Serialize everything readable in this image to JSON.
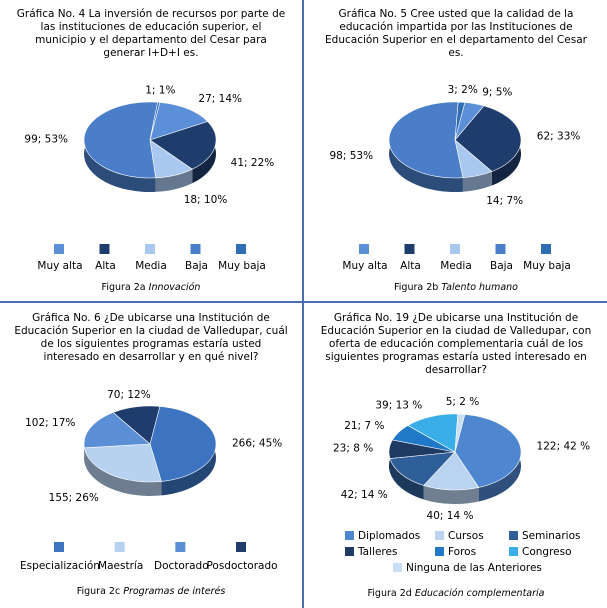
{
  "chart_data": [
    {
      "type": "pie",
      "title": "Gráfica No. 4 La inversión de recursos por parte de las instituciones de educación superior, el municipio y el departamento del Cesar para generar I+D+I es.",
      "categories": [
        "Muy alta",
        "Alta",
        "Media",
        "Baja",
        "Muy baja"
      ],
      "values": [
        27,
        41,
        18,
        99,
        1
      ],
      "value_labels": [
        "27; 14%",
        "41; 22%",
        "18; 10%",
        "99; 53%",
        "1; 1%"
      ],
      "colors": [
        "#5b8fd8",
        "#1f3d6c",
        "#a8c8ef",
        "#4a7ec9",
        "#2f6db5"
      ],
      "legend": "bottom",
      "caption": "Figura 2a",
      "caption_emphasis": "Innovación"
    },
    {
      "type": "pie",
      "title": "Gráfica No. 5 Cree usted que la calidad de la educación impartida por las Instituciones de Educación Superior en el departamento del Cesar es.",
      "categories": [
        "Muy alta",
        "Alta",
        "Media",
        "Baja",
        "Muy baja"
      ],
      "values": [
        9,
        62,
        14,
        98,
        3
      ],
      "value_labels": [
        "9; 5%",
        "62; 33%",
        "14; 7%",
        "98; 53%",
        "3; 2%"
      ],
      "colors": [
        "#5b8fd8",
        "#1f3d6c",
        "#a8c8ef",
        "#4a7ec9",
        "#2f6db5"
      ],
      "legend": "bottom",
      "caption": "Figura 2b",
      "caption_emphasis": "Talento humano"
    },
    {
      "type": "pie",
      "title": "Gráfica No. 6 ¿De ubicarse una Institución de Educación Superior en la ciudad de Valledupar, cuál de los siguientes programas estaría usted interesado en desarrollar y en  qué nivel?",
      "categories": [
        "Especialización",
        "Maestría",
        "Doctorado",
        "Posdoctorado"
      ],
      "values": [
        266,
        155,
        102,
        70
      ],
      "value_labels": [
        "266; 45%",
        "155; 26%",
        "102; 17%",
        "70; 12%"
      ],
      "colors": [
        "#3c74c2",
        "#b7d1f0",
        "#5a8fd6",
        "#1f3d6c"
      ],
      "legend": "bottom",
      "caption": "Figura 2c",
      "caption_emphasis": "Programas de interés"
    },
    {
      "type": "pie",
      "title": "Gráfica No. 19 ¿De ubicarse una Institución de Educación Superior en la ciudad de Valledupar, con oferta de educación complementaria cuál de los siguientes programas estaría usted interesado en desarrollar?",
      "categories": [
        "Diplomados",
        "Cursos",
        "Seminarios",
        "Talleres",
        "Foros",
        "Congreso",
        "Ninguna de las Anteriores"
      ],
      "values": [
        122,
        40,
        42,
        23,
        21,
        39,
        5
      ],
      "value_labels": [
        "122; 42 %",
        "40; 14 %",
        "42; 14 %",
        "23; 8 %",
        "21; 7 %",
        "39; 13 %",
        "5; 2 %"
      ],
      "colors": [
        "#4f86d0",
        "#b9d3f0",
        "#2e5f99",
        "#1f3a63",
        "#1f78c8",
        "#3aaee8",
        "#c9dff5"
      ],
      "legend": "bottom-grid",
      "caption": "Figura 2d",
      "caption_emphasis": "Educación complementaria"
    }
  ]
}
